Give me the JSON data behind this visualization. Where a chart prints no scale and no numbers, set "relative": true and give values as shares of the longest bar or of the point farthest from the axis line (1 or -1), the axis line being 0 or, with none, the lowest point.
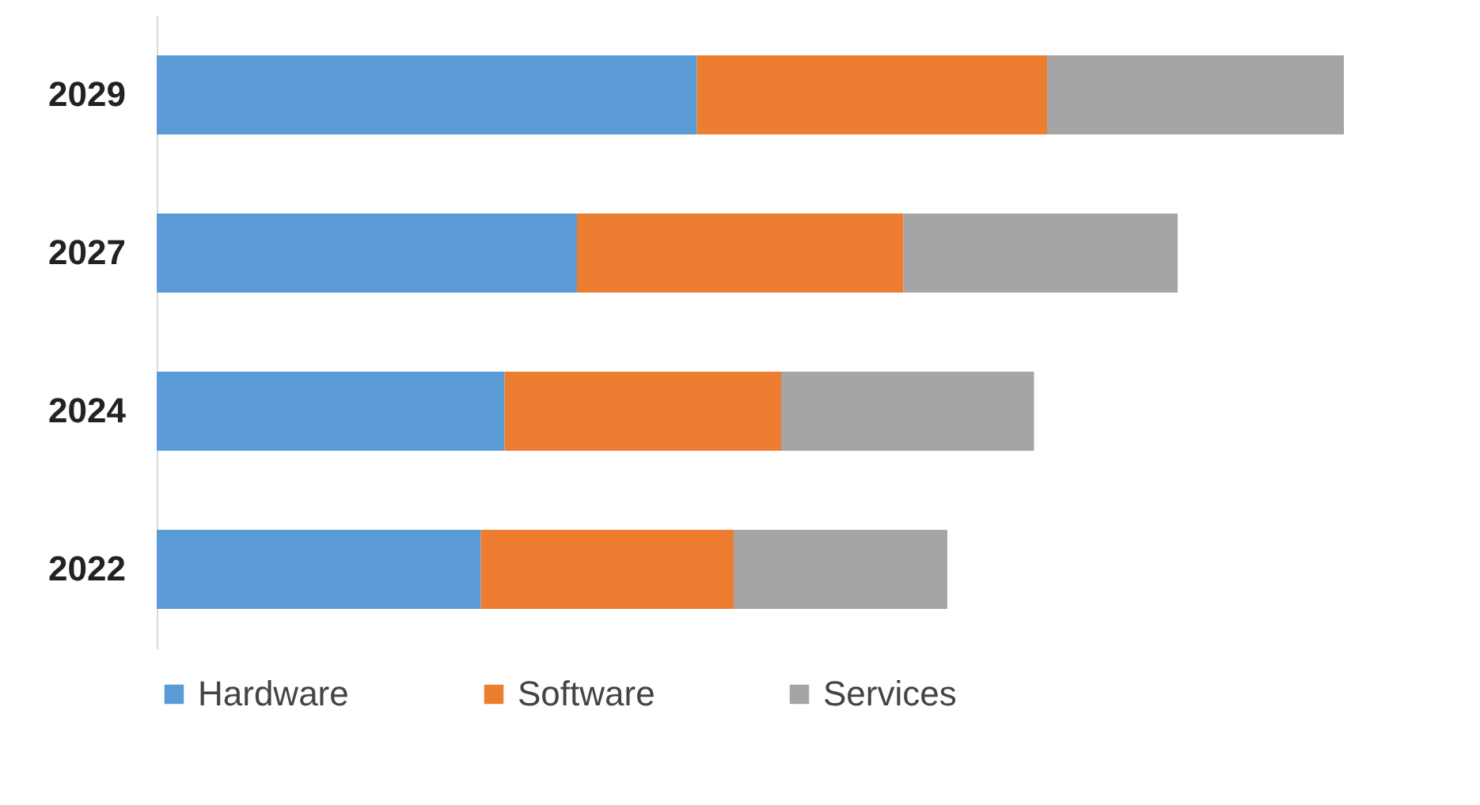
{
  "chart_data": {
    "type": "bar",
    "orientation": "horizontal",
    "stacked": true,
    "relative": true,
    "legend": "bottom",
    "categories": [
      "2029",
      "2027",
      "2024",
      "2022"
    ],
    "series": [
      {
        "name": "Hardware",
        "color": "#5b9bd5",
        "values": [
          0.455,
          0.354,
          0.293,
          0.273
        ]
      },
      {
        "name": "Software",
        "color": "#ed7d31",
        "values": [
          0.295,
          0.275,
          0.233,
          0.213
        ]
      },
      {
        "name": "Services",
        "color": "#a5a5a5",
        "values": [
          0.25,
          0.231,
          0.213,
          0.18
        ]
      }
    ]
  }
}
